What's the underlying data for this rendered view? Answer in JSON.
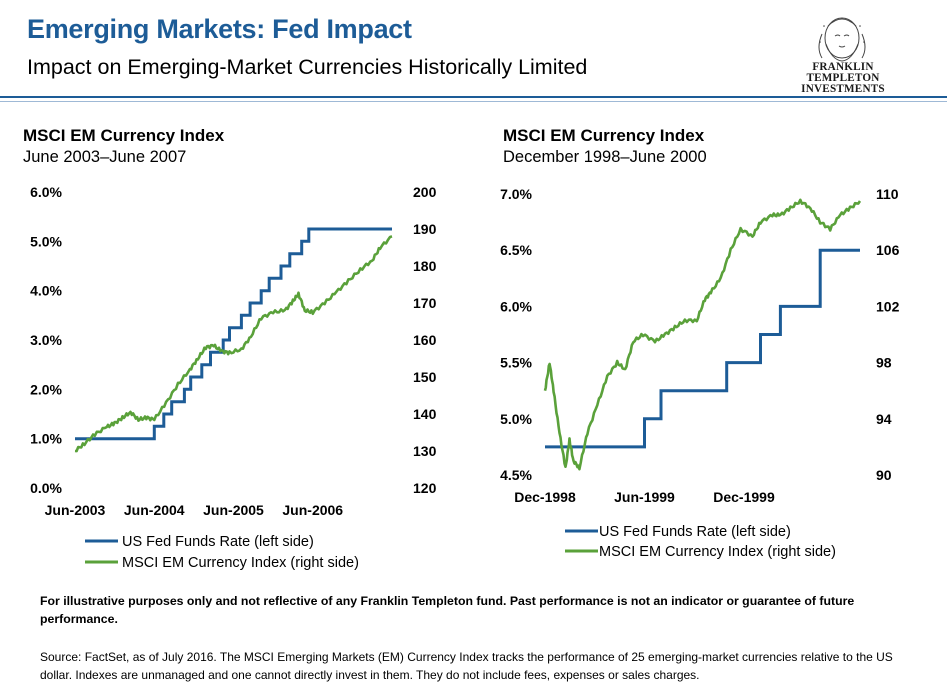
{
  "header": {
    "title": "Emerging Markets: Fed Impact",
    "subtitle": "Impact on Emerging-Market Currencies Historically Limited",
    "logo_line1": "FRANKLIN TEMPLETON",
    "logo_line2": "INVESTMENTS"
  },
  "colors": {
    "title": "#1d5c97",
    "fed_series": "#1d5c97",
    "msci_series": "#5aa13a"
  },
  "chart_data": [
    {
      "type": "line",
      "title": "MSCI EM Currency Index",
      "subtitle": "June 2003–June 2007",
      "x_tick_labels": [
        "Jun-2003",
        "Jun-2004",
        "Jun-2005",
        "Jun-2006"
      ],
      "x_ticks": [
        2003.5,
        2004.5,
        2005.5,
        2006.5
      ],
      "xlim": [
        2003.5,
        2007.5
      ],
      "y_left_ticks": [
        "0.0%",
        "1.0%",
        "2.0%",
        "3.0%",
        "4.0%",
        "5.0%",
        "6.0%"
      ],
      "y_left_lim": [
        0,
        6
      ],
      "y_right_ticks": [
        "120",
        "130",
        "140",
        "150",
        "160",
        "170",
        "180",
        "190",
        "200"
      ],
      "y_right_lim": [
        120,
        200
      ],
      "grid": false,
      "legend_position": "bottom",
      "series": [
        {
          "name": "US Fed Funds Rate (left side)",
          "axis": "left",
          "shape": "step",
          "color": "#1d5c97",
          "x": [
            2003.5,
            2004.5,
            2004.62,
            2004.72,
            2004.88,
            2004.96,
            2005.1,
            2005.21,
            2005.37,
            2005.45,
            2005.6,
            2005.71,
            2005.85,
            2005.95,
            2006.1,
            2006.21,
            2006.36,
            2006.45,
            2007.5
          ],
          "y": [
            1.0,
            1.25,
            1.5,
            1.75,
            2.0,
            2.25,
            2.5,
            2.75,
            3.0,
            3.25,
            3.5,
            3.75,
            4.0,
            4.25,
            4.5,
            4.75,
            5.0,
            5.25,
            5.25
          ]
        },
        {
          "name": "MSCI EM Currency Index (right side)",
          "axis": "right",
          "shape": "line",
          "color": "#5aa13a",
          "x": [
            2003.5,
            2003.62,
            2003.75,
            2003.9,
            2004.0,
            2004.1,
            2004.2,
            2004.3,
            2004.4,
            2004.5,
            2004.65,
            2004.8,
            2004.95,
            2005.05,
            2005.15,
            2005.25,
            2005.35,
            2005.45,
            2005.6,
            2005.72,
            2005.85,
            2006.0,
            2006.15,
            2006.25,
            2006.32,
            2006.4,
            2006.5,
            2006.65,
            2006.8,
            2006.95,
            2007.1,
            2007.25,
            2007.35,
            2007.5
          ],
          "y": [
            130,
            132,
            134.5,
            136.5,
            137.5,
            139,
            140.5,
            138.5,
            139,
            138.5,
            143,
            148,
            152,
            155,
            158,
            158.5,
            157,
            156.5,
            157.5,
            161,
            166,
            167.5,
            168,
            170.5,
            172.5,
            168,
            167.5,
            170,
            173,
            176,
            179,
            181.5,
            185,
            188
          ]
        }
      ]
    },
    {
      "type": "line",
      "title": "MSCI EM Currency Index",
      "subtitle": "December 1998–June 2000",
      "x_tick_labels": [
        "Dec-1998",
        "Jun-1999",
        "Dec-1999"
      ],
      "x_ticks": [
        1998.917,
        1999.417,
        1999.917
      ],
      "xlim": [
        1998.917,
        2000.5
      ],
      "y_left_ticks": [
        "4.5%",
        "5.0%",
        "5.5%",
        "6.0%",
        "6.5%",
        "7.0%"
      ],
      "y_left_lim": [
        4.5,
        7.0
      ],
      "y_right_ticks": [
        "90",
        "94",
        "98",
        "102",
        "106",
        "110"
      ],
      "y_right_lim": [
        90,
        110
      ],
      "grid": false,
      "legend_position": "bottom",
      "series": [
        {
          "name": "US Fed Funds Rate (left side)",
          "axis": "left",
          "shape": "step",
          "color": "#1d5c97",
          "x": [
            1998.917,
            1999.417,
            1999.5,
            1999.65,
            1999.83,
            2000.0,
            2000.1,
            2000.3,
            2000.5
          ],
          "y": [
            4.75,
            5.0,
            5.25,
            5.25,
            5.5,
            5.75,
            6.0,
            6.5,
            6.5
          ]
        },
        {
          "name": "MSCI EM Currency Index (right side)",
          "axis": "right",
          "shape": "line",
          "color": "#5aa13a",
          "x": [
            1998.917,
            1998.94,
            1998.96,
            1998.99,
            1999.02,
            1999.04,
            1999.06,
            1999.09,
            1999.13,
            1999.18,
            1999.23,
            1999.28,
            1999.32,
            1999.36,
            1999.41,
            1999.47,
            1999.52,
            1999.57,
            1999.62,
            1999.68,
            1999.72,
            1999.75,
            1999.8,
            1999.85,
            1999.9,
            1999.96,
            2000.0,
            2000.06,
            2000.1,
            2000.15,
            2000.2,
            2000.25,
            2000.3,
            2000.35,
            2000.4,
            2000.45,
            2000.5
          ],
          "y": [
            96,
            98,
            96,
            93,
            90.5,
            92.5,
            91,
            90.5,
            93,
            95,
            97,
            98,
            97.5,
            99.5,
            100,
            99.5,
            100,
            100.5,
            101,
            101,
            102.5,
            103,
            104,
            106,
            107.5,
            107,
            108,
            108.5,
            108.5,
            109,
            109.5,
            109,
            108,
            107.5,
            108.5,
            109,
            109.5
          ]
        }
      ]
    }
  ],
  "legend": {
    "fed_label": "US Fed Funds Rate (left side)",
    "msci_label": "MSCI EM Currency Index  (right side)"
  },
  "footer": {
    "disclaimer": "For illustrative purposes only and not reflective of any Franklin Templeton fund. Past performance is not an indicator or guarantee of future performance.",
    "source": "Source: FactSet, as of July 2016. The MSCI Emerging Markets (EM) Currency Index tracks the performance of 25 emerging-market currencies relative to the US dollar. Indexes are unmanaged and one cannot directly invest in them. They do not include fees, expenses or sales charges."
  }
}
